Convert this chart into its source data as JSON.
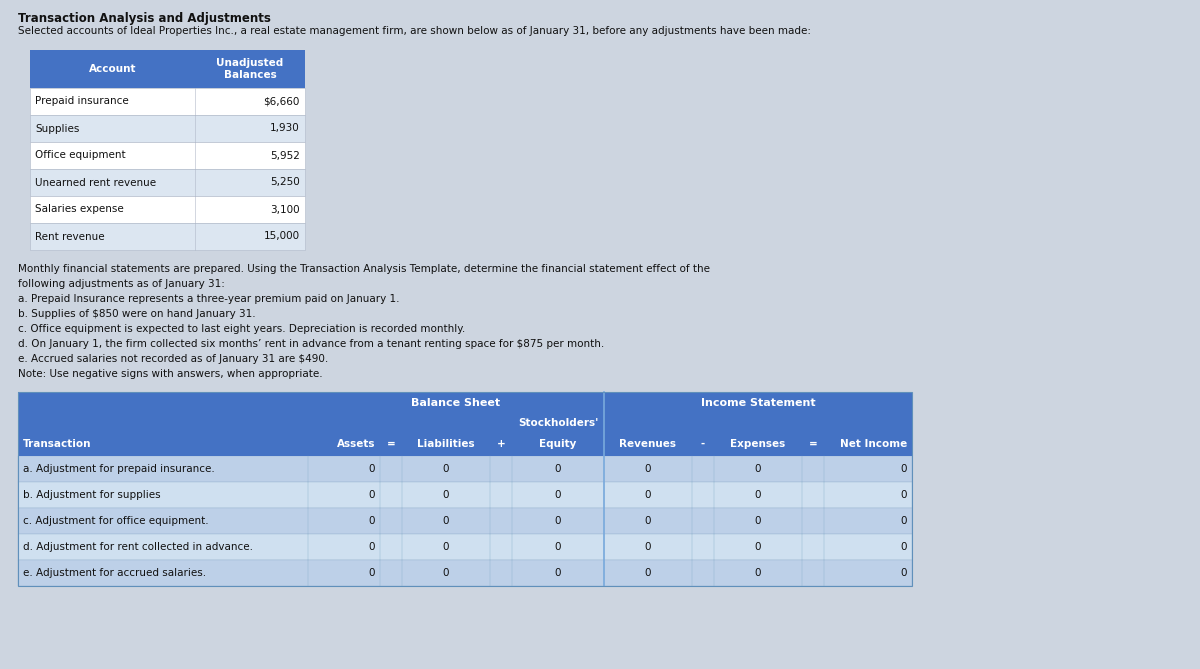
{
  "title": "Transaction Analysis and Adjustments",
  "subtitle": "Selected accounts of Ideal Properties Inc., a real estate management firm, are shown below as of January 31, before any adjustments have been made:",
  "bg_color": "#cdd5e0",
  "header_color": "#4472c4",
  "header_text_color": "#ffffff",
  "table1_header": [
    "Account",
    "Unadjusted\nBalances"
  ],
  "table1_rows": [
    [
      "Prepaid insurance",
      "$6,660"
    ],
    [
      "Supplies",
      "1,930"
    ],
    [
      "Office equipment",
      "5,952"
    ],
    [
      "Unearned rent revenue",
      "5,250"
    ],
    [
      "Salaries expense",
      "3,100"
    ],
    [
      "Rent revenue",
      "15,000"
    ]
  ],
  "notes": [
    "Monthly financial statements are prepared. Using the Transaction Analysis Template, determine the financial statement effect of the",
    "following adjustments as of January 31:",
    "a. Prepaid Insurance represents a three-year premium paid on January 1.",
    "b. Supplies of $850 were on hand January 31.",
    "c. Office equipment is expected to last eight years. Depreciation is recorded monthly.",
    "d. On January 1, the firm collected six months’ rent in advance from a tenant renting space for $875 per month.",
    "e. Accrued salaries not recorded as of January 31 are $490.",
    "Note: Use negative signs with answers, when appropriate."
  ],
  "table2_rows": [
    "a. Adjustment for prepaid insurance.",
    "b. Adjustment for supplies",
    "c. Adjustment for office equipment.",
    "d. Adjustment for rent collected in advance.",
    "e. Adjustment for accrued salaries."
  ],
  "row_colors_t1": [
    "#ffffff",
    "#dce6f1"
  ],
  "row_colors_t2_odd": "#bdd0e8",
  "row_colors_t2_even": "#cfe0f0",
  "sep_color": "#7aaadd"
}
